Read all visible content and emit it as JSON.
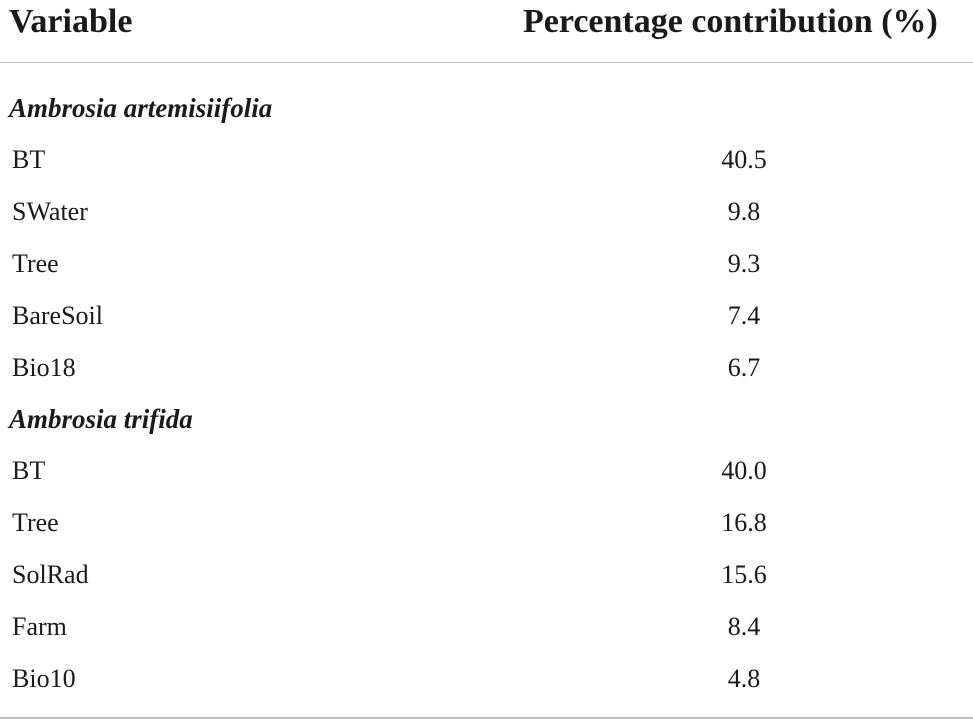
{
  "header": {
    "variable": "Variable",
    "percentage": "Percentage contribution (%)"
  },
  "groups": [
    {
      "name": "Ambrosia artemisiifolia",
      "rows": [
        {
          "variable": "BT",
          "value": "40.5"
        },
        {
          "variable": "SWater",
          "value": "9.8"
        },
        {
          "variable": "Tree",
          "value": "9.3"
        },
        {
          "variable": "BareSoil",
          "value": "7.4"
        },
        {
          "variable": "Bio18",
          "value": "6.7"
        }
      ]
    },
    {
      "name": "Ambrosia trifida",
      "rows": [
        {
          "variable": "BT",
          "value": "40.0"
        },
        {
          "variable": "Tree",
          "value": "16.8"
        },
        {
          "variable": "SolRad",
          "value": "15.6"
        },
        {
          "variable": "Farm",
          "value": "8.4"
        },
        {
          "variable": "Bio10",
          "value": "4.8"
        }
      ]
    }
  ]
}
